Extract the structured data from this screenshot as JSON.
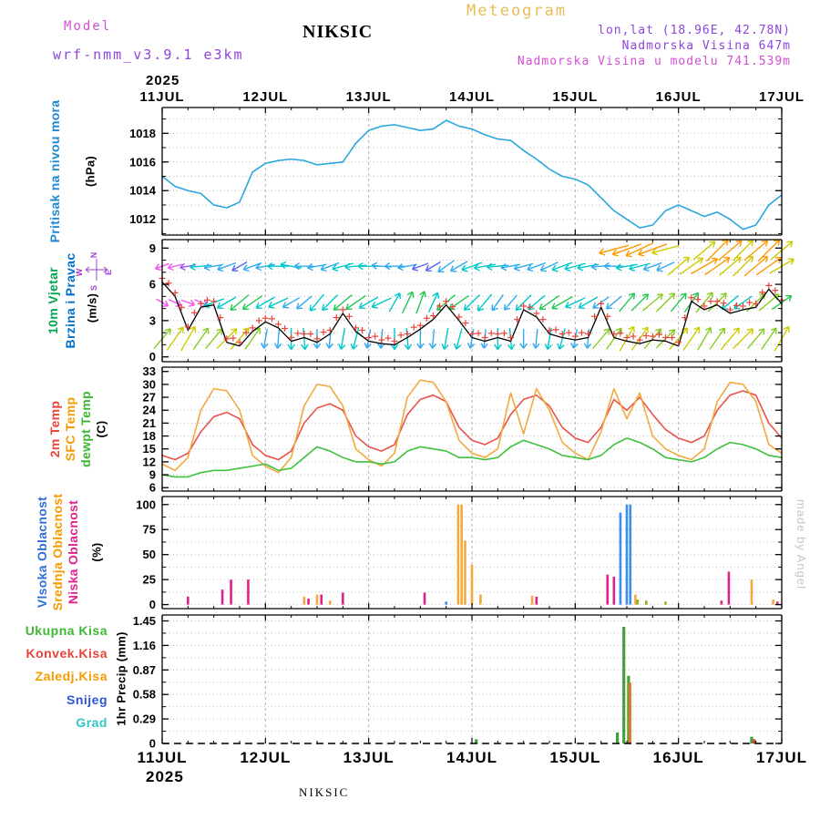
{
  "header": {
    "meteogram": "Meteogram",
    "model_label": "Model",
    "model_name": "wrf-nmm_v3.9.1 e3km",
    "station": "NIKSIC",
    "lonlat": "lon,lat (18.96E, 42.78N)",
    "elevation": "Nadmorska Visina 647m",
    "model_elevation": "Nadmorska Visina u modelu 741.539m"
  },
  "labels": {
    "pressure_main": "Pritisak na nivou mora",
    "pressure_unit": "(hPa)",
    "wind_main": "10m Vjetar",
    "wind_sub": "Brzina i Pravac",
    "wind_unit": "(m/s)",
    "temp_2m": "2m Temp",
    "temp_sfc": "SFC Temp",
    "temp_dew": "dewpt Temp",
    "temp_unit": "(C)",
    "cloud_high": "Vlsoka Oblacnost",
    "cloud_mid": "Srednja Oblacnost",
    "cloud_low": "Niska Oblacnost",
    "cloud_unit": "(%)",
    "precip_total": "Ukupna Kisa",
    "precip_conv": "Konvek.Kisa",
    "precip_ls": "Zaledj.Kisa",
    "precip_snow": "Snijeg",
    "precip_hail": "Grad",
    "precip_unit": "1hr Precip (mm)",
    "compass": {
      "n": "N",
      "e": "E",
      "s": "S",
      "w": "W"
    }
  },
  "watermark": "made by Angel",
  "footer": {
    "station": "NIKSIC"
  },
  "chart_data": {
    "type": "meteogram",
    "x": {
      "unit": "hours",
      "range": [
        0,
        144
      ],
      "year": "2025",
      "day_labels": [
        "11JUL",
        "12JUL",
        "13JUL",
        "14JUL",
        "15JUL",
        "16JUL",
        "17JUL"
      ]
    },
    "panels": [
      {
        "id": "pressure",
        "kind": "line",
        "ylim": [
          1010.9,
          1019.8
        ],
        "yticks": [
          1012,
          1014,
          1016,
          1018
        ],
        "ygrid": [
          1011,
          1012,
          1013,
          1014,
          1015,
          1016,
          1017,
          1018,
          1019
        ],
        "t_step": 3,
        "series": [
          {
            "name": "sea-level-pressure",
            "color": "#2aa7df",
            "values": [
              1015,
              1014.3,
              1014,
              1013.8,
              1013,
              1012.8,
              1013.2,
              1015.3,
              1015.9,
              1016.1,
              1016.2,
              1016.1,
              1015.8,
              1015.9,
              1016,
              1017.3,
              1018.2,
              1018.5,
              1018.6,
              1018.4,
              1018.2,
              1018.3,
              1018.9,
              1018.5,
              1018.3,
              1017.9,
              1017.6,
              1017.5,
              1016.8,
              1016.2,
              1015.5,
              1015,
              1014.8,
              1014.4,
              1013.5,
              1012.6,
              1012,
              1011.4,
              1011.6,
              1012.6,
              1013,
              1012.6,
              1012.2,
              1012.5,
              1012,
              1011.3,
              1011.6,
              1013,
              1013.7
            ]
          }
        ]
      },
      {
        "id": "wind",
        "kind": "wind",
        "ylim": [
          -0.4,
          9.7
        ],
        "yticks": [
          0,
          3,
          6,
          9
        ],
        "ygrid": [
          0,
          1,
          2,
          3,
          4,
          5,
          6,
          7,
          8,
          9
        ],
        "t_step": 3,
        "speed": {
          "color": "#000000",
          "values": [
            6.2,
            5,
            2.2,
            4.1,
            4.3,
            1.2,
            0.9,
            2.1,
            2.9,
            2.4,
            1.3,
            1.6,
            1.2,
            1.9,
            3.6,
            2.1,
            1.3,
            1.1,
            1,
            1.6,
            2.3,
            3.1,
            4.3,
            3,
            1.6,
            1.3,
            1.6,
            1.3,
            3.9,
            3.3,
            1.9,
            1.6,
            1.4,
            1.6,
            4.1,
            1.6,
            1.3,
            1.1,
            1.4,
            1.3,
            0.9,
            4.6,
            3.9,
            4.3,
            3.6,
            3.9,
            4.1,
            5.6,
            4.4
          ]
        },
        "gust_marker": {
          "color": "#e8443a",
          "offset": 0.3
        },
        "palette": [
          "#ee55ee",
          "#9955ee",
          "#5566ee",
          "#33aaee",
          "#00c8c8",
          "#22c855",
          "#88cc22",
          "#cccc00",
          "#ff9900",
          "#ff3300"
        ],
        "rows": [
          {
            "y": 7.5,
            "dirs": [
              200,
              195,
              190,
              185,
              190,
              200,
              210,
              200,
              190,
              180,
              170,
              180,
              190,
              200,
              195,
              185,
              180,
              175,
              180,
              190,
              200,
              210,
              215,
              210,
              200,
              190,
              185,
              190,
              195,
              200,
              205,
              200,
              195,
              190,
              185,
              180,
              190,
              195,
              200,
              205,
              40,
              35,
              30,
              35,
              40,
              45,
              40,
              35,
              30
            ],
            "spds": [
              0.8,
              0.8,
              1.5,
              4,
              3,
              3,
              2,
              3,
              3,
              4,
              4,
              3,
              3,
              3,
              4,
              4,
              4,
              3,
              3,
              3,
              2,
              2,
              3,
              3,
              4,
              4,
              4,
              3,
              3,
              3,
              3,
              4,
              4,
              4,
              3,
              3,
              4,
              4,
              3,
              3,
              7,
              7,
              8,
              8,
              7,
              7,
              8,
              8,
              7
            ]
          },
          {
            "y": 4.5,
            "dirs": [
              330,
              335,
              340,
              335,
              200,
              210,
              220,
              215,
              210,
              205,
              210,
              220,
              230,
              225,
              220,
              215,
              210,
              205,
              60,
              65,
              70,
              65,
              220,
              215,
              225,
              230,
              235,
              230,
              225,
              220,
              215,
              210,
              205,
              210,
              215,
              220,
              50,
              45,
              40,
              45,
              50,
              55,
              50,
              45,
              220,
              215,
              45,
              40,
              35
            ],
            "spds": [
              0.5,
              0.5,
              0.5,
              0.5,
              4,
              4,
              5,
              5,
              4,
              4,
              3,
              3,
              4,
              4,
              5,
              5,
              4,
              4,
              4,
              5,
              5,
              4,
              5,
              5,
              4,
              4,
              3,
              3,
              4,
              4,
              5,
              5,
              4,
              4,
              3,
              3,
              5,
              5,
              6,
              6,
              5,
              5,
              6,
              6,
              4,
              4,
              6,
              6,
              5
            ]
          },
          {
            "y": 1.5,
            "dirs": [
              50,
              55,
              60,
              55,
              50,
              45,
              50,
              55,
              260,
              265,
              270,
              275,
              270,
              265,
              260,
              255,
              260,
              265,
              270,
              275,
              270,
              265,
              260,
              255,
              260,
              265,
              270,
              275,
              270,
              265,
              260,
              255,
              260,
              265,
              50,
              55,
              60,
              55,
              50,
              45,
              50,
              55,
              60,
              55,
              50,
              45,
              50,
              55,
              60
            ],
            "spds": [
              6,
              7,
              7,
              6,
              6,
              7,
              7,
              6,
              3,
              3,
              4,
              4,
              3,
              3,
              4,
              4,
              3,
              3,
              4,
              4,
              3,
              3,
              4,
              4,
              3,
              3,
              4,
              4,
              3,
              3,
              4,
              4,
              3,
              3,
              6,
              6,
              7,
              7,
              6,
              6,
              7,
              7,
              6,
              6,
              7,
              7,
              6,
              6,
              7
            ]
          }
        ],
        "extra": [
          [
            105,
            8.9,
            195,
            8
          ],
          [
            108,
            8.9,
            200,
            8
          ],
          [
            111,
            8.9,
            205,
            8
          ],
          [
            114,
            8.9,
            200,
            8
          ],
          [
            117,
            8.9,
            195,
            7
          ],
          [
            126,
            8.8,
            40,
            7
          ],
          [
            129,
            8.8,
            45,
            8
          ],
          [
            132,
            8.8,
            40,
            8
          ],
          [
            135,
            8.8,
            45,
            7
          ],
          [
            138,
            8.8,
            40,
            8
          ],
          [
            141,
            8.8,
            45,
            8
          ],
          [
            144,
            8.8,
            40,
            7
          ]
        ]
      },
      {
        "id": "temp",
        "kind": "line",
        "ylim": [
          5.2,
          34
        ],
        "yticks": [
          6,
          9,
          12,
          15,
          18,
          21,
          24,
          27,
          30,
          33
        ],
        "t_step": 3,
        "series": [
          {
            "name": "2m-temp",
            "color": "#e8534a",
            "values": [
              13.5,
              12.5,
              14,
              19,
              22.5,
              23.5,
              22,
              16,
              13.5,
              12.5,
              14.5,
              21,
              24.5,
              25.5,
              24,
              18,
              15.5,
              14.5,
              16,
              23,
              26.5,
              27.5,
              26,
              20,
              17,
              16,
              17.5,
              23,
              26.5,
              27.5,
              25,
              20,
              17.5,
              16.5,
              20,
              26.5,
              24,
              27,
              23,
              19.5,
              17.5,
              16.5,
              18,
              24,
              27.5,
              28.5,
              27.5,
              21,
              17.5
            ]
          },
          {
            "name": "sfc-temp",
            "color": "#f2a93e",
            "values": [
              11.5,
              10,
              13,
              24,
              29,
              28.5,
              24,
              13.5,
              11,
              9.5,
              13,
              25,
              30,
              29.5,
              25,
              15,
              12.5,
              11,
              14,
              27,
              31,
              30.5,
              26,
              17,
              14,
              13,
              15,
              28,
              18.5,
              29,
              24,
              16.5,
              14,
              12.5,
              19,
              29,
              22,
              28,
              18,
              15,
              13.5,
              12.5,
              15,
              26,
              30.5,
              30,
              26,
              16,
              14
            ]
          },
          {
            "name": "dewpoint-temp",
            "color": "#3fc03f",
            "values": [
              9,
              8.5,
              8.5,
              9.5,
              10,
              10,
              10.5,
              11,
              11.5,
              10,
              10.5,
              13,
              15.5,
              14.5,
              13,
              12,
              12,
              11.5,
              12,
              14.5,
              15.5,
              15,
              14.5,
              13,
              13,
              12.5,
              13,
              15.5,
              17,
              16,
              15,
              13.5,
              13,
              12.5,
              13.5,
              16,
              17.5,
              16.5,
              15,
              13,
              12.5,
              12,
              13,
              15,
              16.5,
              16,
              15,
              13.5,
              13
            ]
          }
        ]
      },
      {
        "id": "cloud",
        "kind": "bar",
        "ylim": [
          -4,
          108
        ],
        "yticks": [
          0,
          25,
          50,
          75,
          100
        ],
        "ygrid": [
          0,
          12.5,
          25,
          37.5,
          50,
          62.5,
          75,
          87.5,
          100
        ],
        "bar_width": 2.6,
        "series": [
          {
            "name": "mid-cloud",
            "color": "#f2a93e",
            "points": [
              [
                33,
                8
              ],
              [
                36,
                10
              ],
              [
                39,
                4
              ],
              [
                68.8,
                100
              ],
              [
                69.6,
                100
              ],
              [
                70.4,
                64
              ],
              [
                72,
                40
              ],
              [
                74,
                10
              ],
              [
                86,
                9
              ],
              [
                110,
                10
              ],
              [
                137,
                25
              ],
              [
                142,
                5
              ]
            ]
          },
          {
            "name": "low-cloud",
            "color": "#e0218a",
            "points": [
              [
                6,
                8
              ],
              [
                14,
                15
              ],
              [
                16,
                25
              ],
              [
                20,
                25
              ],
              [
                34,
                6
              ],
              [
                37,
                10
              ],
              [
                42,
                12
              ],
              [
                61,
                12
              ],
              [
                87,
                8
              ],
              [
                103.5,
                30
              ],
              [
                105,
                28
              ],
              [
                130,
                4
              ],
              [
                131.7,
                33
              ],
              [
                143,
                3
              ]
            ]
          },
          {
            "name": "other-cloud",
            "color": "#8fae22",
            "points": [
              [
                110.5,
                5
              ],
              [
                112.5,
                4
              ],
              [
                117,
                3
              ]
            ]
          },
          {
            "name": "high-cloud",
            "color": "#3a8ef0",
            "points": [
              [
                66,
                3
              ],
              [
                106.5,
                92
              ],
              [
                108,
                100
              ],
              [
                108.8,
                100
              ]
            ]
          }
        ]
      },
      {
        "id": "precip",
        "kind": "bar",
        "ylim": [
          0,
          1.52
        ],
        "yticks": [
          0,
          0.29,
          0.58,
          0.87,
          1.16,
          1.45
        ],
        "ygrid": [
          0.145,
          0.29,
          0.435,
          0.58,
          0.725,
          0.87,
          1.015,
          1.16,
          1.305,
          1.45
        ],
        "bar_width": 3.2,
        "series": [
          {
            "name": "total-precip",
            "color": "#44a03c",
            "points": [
              [
                73,
                0.05
              ],
              [
                105.8,
                0.13
              ],
              [
                107.3,
                1.38
              ],
              [
                108.4,
                0.8
              ],
              [
                137,
                0.08
              ]
            ]
          },
          {
            "name": "convective-precip",
            "color": "#cc4433",
            "points": [
              [
                137.6,
                0.05
              ]
            ]
          },
          {
            "name": "large-scale-precip",
            "color": "#dd7722",
            "points": [
              [
                108.7,
                0.72
              ]
            ]
          },
          {
            "name": "snow",
            "color": "#2f55d0",
            "points": []
          },
          {
            "name": "hail",
            "color": "#33c6c6",
            "points": []
          }
        ]
      }
    ]
  }
}
